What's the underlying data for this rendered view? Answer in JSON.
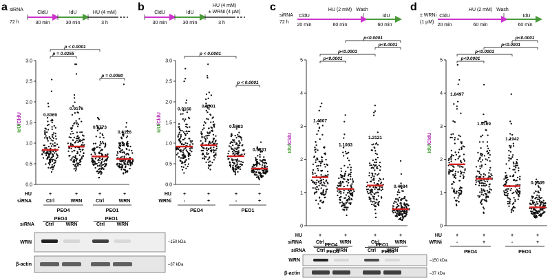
{
  "panels": [
    {
      "label": "a",
      "timeline": {
        "seg1": "CldU",
        "seg1_time": "30 min",
        "seg2": "IdU",
        "seg2_time": "30 min",
        "seg3": "HU (4 mM)",
        "seg3_time": "3 h",
        "prefix": "siRNA",
        "prefix_time": "72 h"
      },
      "ylabel_a": "IdU",
      "ylabel_sep": "/",
      "ylabel_b": "CldU",
      "yticks": [
        "0.0",
        "0.5",
        "1.0",
        "1.5",
        "2.0",
        "2.5",
        "3.0"
      ],
      "ymax": 3.0,
      "groups": [
        {
          "median": 0.8369,
          "label": "0.8369",
          "hu": "+",
          "cond": "Ctrl"
        },
        {
          "median": 0.9176,
          "label": "0.9176",
          "hu": "+",
          "cond": "WRN"
        },
        {
          "median": 0.6773,
          "label": "0.6773",
          "hu": "+",
          "cond": "Ctrl"
        },
        {
          "median": 0.6126,
          "label": "0.6126",
          "hu": "+",
          "cond": "WRN"
        }
      ],
      "row1": "HU",
      "row2": "siRNA",
      "cells": [
        "PEO4",
        "PEO1"
      ],
      "pvals": [
        {
          "text": "p = 0.0255",
          "from": 0,
          "to": 1
        },
        {
          "text": "p < 0.0001",
          "from": 0,
          "to": 2
        },
        {
          "text": "p = 0.0080",
          "from": 2,
          "to": 3
        }
      ]
    },
    {
      "label": "b",
      "timeline": {
        "seg1": "CldU",
        "seg1_time": "30 min",
        "seg2": "IdU",
        "seg2_time": "30 min",
        "seg3": "HU (4 mM)",
        "seg3b": "± WRNi (4 µM)",
        "seg3_time": "3 h"
      },
      "ylabel_a": "IdU",
      "ylabel_sep": "/",
      "ylabel_b": "CldU",
      "yticks": [
        "0.0",
        "0.5",
        "1.0",
        "1.5",
        "2.0",
        "2.5",
        "3.0"
      ],
      "ymax": 3.0,
      "groups": [
        {
          "median": 0.9166,
          "label": "0.9166",
          "hu": "+",
          "cond": "-"
        },
        {
          "median": 0.9501,
          "label": "0.9501",
          "hu": "+",
          "cond": "+"
        },
        {
          "median": 0.6833,
          "label": "0.6833",
          "hu": "+",
          "cond": "-"
        },
        {
          "median": 0.3831,
          "label": "0.3831",
          "hu": "+",
          "cond": "+"
        }
      ],
      "row1": "HU",
      "row2": "WRNi",
      "cells": [
        "PEO4",
        "PEO1"
      ],
      "pvals": [
        {
          "text": "p < 0.0001",
          "from": 0,
          "to": 2
        },
        {
          "text": "p < 0.0001",
          "from": 2,
          "to": 3
        }
      ]
    },
    {
      "label": "c",
      "timeline": {
        "prefix": "siRNA",
        "prefix_time": "72 h",
        "seg1": "CldU",
        "seg1_time": "20 min",
        "seg2": "HU (2 mM)",
        "seg2_time": "60 min",
        "wash": "Wash",
        "seg3": "IdU",
        "seg3_time": "60 min"
      },
      "ylabel_a": "IdU",
      "ylabel_sep": "/",
      "ylabel_b": "CldU",
      "yticks": [
        "0",
        "1",
        "2",
        "3",
        "4",
        "5"
      ],
      "ymax": 5.0,
      "groups": [
        {
          "median": 1.4607,
          "label": "1.4607",
          "hu": "+",
          "cond": "Ctrl"
        },
        {
          "median": 1.1083,
          "label": "1.1083",
          "hu": "+",
          "cond": "WRN"
        },
        {
          "median": 1.2121,
          "label": "1.2121",
          "hu": "+",
          "cond": "Ctrl"
        },
        {
          "median": 0.4984,
          "label": "0.4984",
          "hu": "+",
          "cond": "WRN"
        }
      ],
      "row1": "HU",
      "row2": "siRNA",
      "cells": [
        "PEO4",
        "PEO1"
      ],
      "pvals": [
        {
          "text": "p<0.0001",
          "from": 0,
          "to": 1
        },
        {
          "text": "p<0.0001",
          "from": 0,
          "to": 2
        },
        {
          "text": "p<0.0001",
          "from": 2,
          "to": 3
        },
        {
          "text": "p<0.0001",
          "from": 1,
          "to": 3
        }
      ]
    },
    {
      "label": "d",
      "timeline": {
        "prefix": "± WRNi",
        "prefix_time": "(1 µM)",
        "seg1": "CldU",
        "seg1_time": "20 min",
        "seg2": "HU (2 mM)",
        "seg2_time": "60 min",
        "wash": "Wash",
        "seg3": "IdU",
        "seg3_time": "60 min"
      },
      "ylabel_a": "IdU",
      "ylabel_sep": "/",
      "ylabel_b": "CldU",
      "yticks": [
        "0",
        "1",
        "2",
        "3",
        "4",
        "5"
      ],
      "ymax": 5.0,
      "groups": [
        {
          "median": 1.8497,
          "label": "1.8497",
          "hu": "+",
          "cond": "-"
        },
        {
          "median": 1.4169,
          "label": "1.4169",
          "hu": "+",
          "cond": "+"
        },
        {
          "median": 1.1942,
          "label": "1.1942",
          "hu": "+",
          "cond": "-"
        },
        {
          "median": 0.5539,
          "label": "0.5539",
          "hu": "+",
          "cond": "+"
        }
      ],
      "row1": "HU",
      "row2": "WRNi",
      "cells": [
        "PEO4",
        "PEO1"
      ],
      "pvals": [
        {
          "text": "p<0.0001",
          "from": 0,
          "to": 1
        },
        {
          "text": "p<0.0001",
          "from": 0,
          "to": 2
        },
        {
          "text": "p<0.0001",
          "from": 1,
          "to": 3
        },
        {
          "text": "p<0.0001",
          "from": 2,
          "to": 3
        }
      ]
    }
  ],
  "blots": [
    {
      "id": "blot-a",
      "row_label": "siRNA",
      "cells": [
        "PEO4",
        "PEO1"
      ],
      "lanes": [
        "Ctrl",
        "WRN",
        "Ctrl",
        "WRN"
      ],
      "proteins": [
        "WRN",
        "β-actin"
      ],
      "sizes": [
        "150 kDa",
        "37 kDa"
      ]
    },
    {
      "id": "blot-c",
      "row_label": "siRNA",
      "cells": [
        "PEO4",
        "PEO1"
      ],
      "lanes": [
        "Ctrl",
        "WRN",
        "Ctrl",
        "WRN"
      ],
      "proteins": [
        "WRN",
        "β-actin"
      ],
      "sizes": [
        "150 kDa",
        "37 kDa"
      ]
    }
  ],
  "colors": {
    "cldu": "#cc33cc",
    "idu": "#4a9a3a",
    "median": "#d42020",
    "ylabel_a": "#3a9a2a",
    "ylabel_b": "#b020b0"
  }
}
